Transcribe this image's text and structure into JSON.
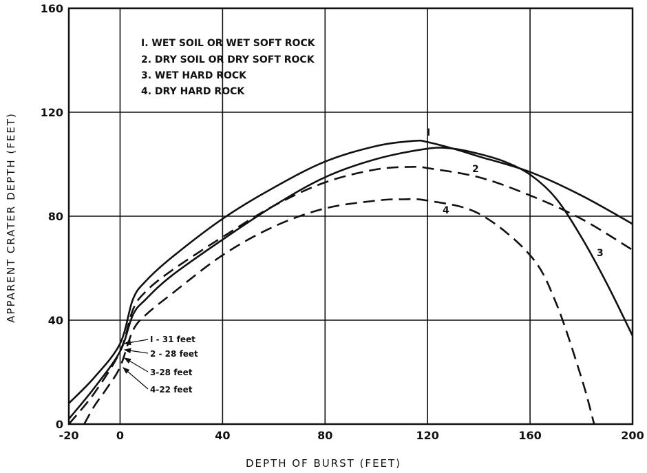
{
  "chart_data": {
    "type": "line",
    "xlabel": "DEPTH OF BURST (FEET)",
    "ylabel": "APPARENT CRATER DEPTH (FEET)",
    "xlim": [
      -20,
      200
    ],
    "ylim": [
      0,
      160
    ],
    "x_ticks": [
      "-20",
      "0",
      "40",
      "80",
      "120",
      "160",
      "200"
    ],
    "y_ticks": [
      "0",
      "40",
      "80",
      "120",
      "160"
    ],
    "grid": true,
    "legend_position": "top-left",
    "legend": [
      "I. WET SOIL OR WET SOFT ROCK",
      "2. DRY SOIL OR DRY SOFT ROCK",
      "3. WET HARD ROCK",
      "4. DRY HARD ROCK"
    ],
    "series": [
      {
        "name": "I",
        "style": "solid",
        "x": [
          -20,
          -10,
          0,
          5,
          10,
          20,
          40,
          60,
          80,
          100,
          115,
          120,
          130,
          140,
          160,
          180,
          200
        ],
        "y": [
          8,
          18,
          31,
          48,
          55,
          64,
          79,
          91,
          101,
          107,
          109,
          108.5,
          106,
          103,
          97,
          88,
          77
        ]
      },
      {
        "name": "2",
        "style": "dashed",
        "x": [
          -20,
          -10,
          0,
          5,
          10,
          20,
          40,
          60,
          80,
          100,
          115,
          120,
          140,
          160,
          180,
          200
        ],
        "y": [
          0,
          12,
          28,
          44,
          51,
          59,
          72,
          84,
          93,
          98,
          99,
          98.5,
          95,
          88,
          79,
          67
        ]
      },
      {
        "name": "3",
        "style": "solid",
        "x": [
          -20,
          -10,
          0,
          5,
          10,
          20,
          40,
          60,
          80,
          100,
          120,
          130,
          140,
          150,
          160,
          170,
          180,
          190,
          200
        ],
        "y": [
          2,
          14,
          28,
          42,
          48,
          57,
          71,
          84,
          95,
          102,
          106,
          106,
          104,
          101,
          96,
          87,
          72,
          54,
          34
        ]
      },
      {
        "name": "4",
        "style": "dashed",
        "x": [
          -14,
          -10,
          -5,
          0,
          5,
          10,
          20,
          40,
          60,
          80,
          100,
          110,
          120,
          140,
          160,
          170,
          180,
          185
        ],
        "y": [
          0,
          7,
          14,
          22,
          36,
          42,
          50,
          65,
          76,
          83,
          86,
          86.5,
          86,
          81,
          65,
          47,
          18,
          0
        ]
      }
    ],
    "curve_labels": [
      "I",
      "2",
      "3",
      "4"
    ],
    "annotations": [
      "I - 31 feet",
      "2 - 28 feet",
      "3-28 feet",
      "4-22 feet"
    ]
  }
}
